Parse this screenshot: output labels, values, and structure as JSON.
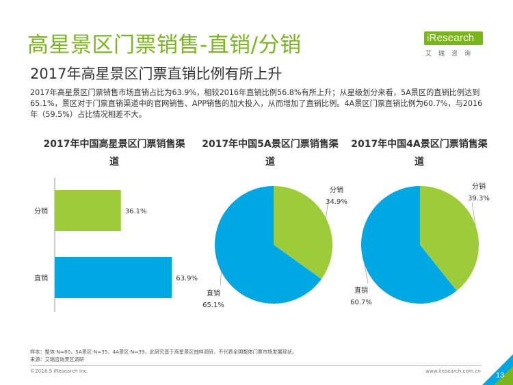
{
  "header": {
    "title": "高星景区门票销售-直销/分销",
    "subtitle": "2017年高星景区门票直销比例有所上升"
  },
  "logo": {
    "brand": "iResearch",
    "chinese": "艾瑞咨询"
  },
  "summary": "2017年高星景区门票销售市场直销占比为63.9%，相较2016年直销比例56.8%有所上升；从星级划分来看，5A景区的直销比例达到65.1%，景区对于门票直销渠道中的官网销售、APP销售的加大投入，从而增加了直销比例。4A景区门票直销比例为60.7%，与2016年（59.5%）占比情况相差不大。",
  "colors": {
    "title_green": "#7ab51d",
    "fenxiao": "#9dcb3a",
    "zhixiao": "#00a8e3"
  },
  "chart_data": [
    {
      "type": "bar",
      "orientation": "horizontal",
      "title": "2017年中国高星景区门票销售渠道",
      "categories": [
        "分销",
        "直销"
      ],
      "values": [
        36.1,
        63.9
      ],
      "value_labels": [
        "36.1%",
        "63.9%"
      ],
      "xlim": [
        0,
        100
      ]
    },
    {
      "type": "pie",
      "title": "2017年中国5A景区门票销售渠道",
      "labels": [
        "分销",
        "直销"
      ],
      "values": [
        34.9,
        65.1
      ],
      "value_labels": [
        "34.9%",
        "65.1%"
      ]
    },
    {
      "type": "pie",
      "title": "2017年中国4A景区门票销售渠道",
      "labels": [
        "分销",
        "直销"
      ],
      "values": [
        39.3,
        60.7
      ],
      "value_labels": [
        "39.3%",
        "60.7%"
      ]
    }
  ],
  "notes": {
    "sample": "样本：整体-N=80，5A景区-N=35，4A景区-N=39，此研究基于高星景区抽样调研，不代表全国整体门票市场发展现状。",
    "source": "来源：艾瑞咨询景区调研"
  },
  "footer": {
    "copyright": "©2018.5 iResearch Inc.",
    "website": "www.iresearch.com.cn",
    "page_number": "13"
  }
}
